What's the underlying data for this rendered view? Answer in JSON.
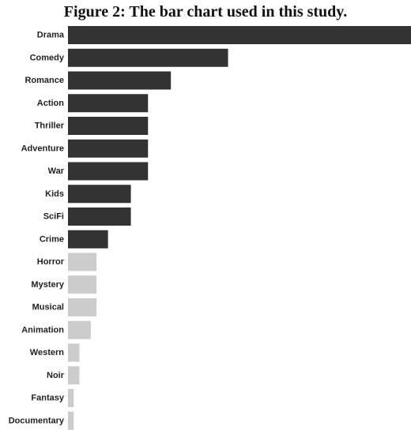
{
  "figure": {
    "caption": "Figure 2: The bar chart used in this study."
  },
  "chart_data": {
    "type": "bar",
    "orientation": "horizontal",
    "title": "",
    "xlabel": "",
    "ylabel": "",
    "grid": false,
    "legend": "none",
    "xlim": [
      0,
      15
    ],
    "categories": [
      "Drama",
      "Comedy",
      "Romance",
      "Action",
      "Thriller",
      "Adventure",
      "War",
      "Kids",
      "SciFi",
      "Crime",
      "Horror",
      "Mystery",
      "Musical",
      "Animation",
      "Western",
      "Noir",
      "Fantasy",
      "Documentary"
    ],
    "values": [
      15,
      7,
      4.5,
      3.5,
      3.5,
      3.5,
      3.5,
      2.75,
      2.75,
      1.75,
      1.25,
      1.25,
      1.25,
      1,
      0.5,
      0.5,
      0.25,
      0.25
    ],
    "highlighted": [
      true,
      true,
      true,
      true,
      true,
      true,
      true,
      true,
      true,
      true,
      false,
      false,
      false,
      false,
      false,
      false,
      false,
      false
    ],
    "colors": {
      "highlight": "#333333",
      "muted": "#cccccc"
    }
  }
}
